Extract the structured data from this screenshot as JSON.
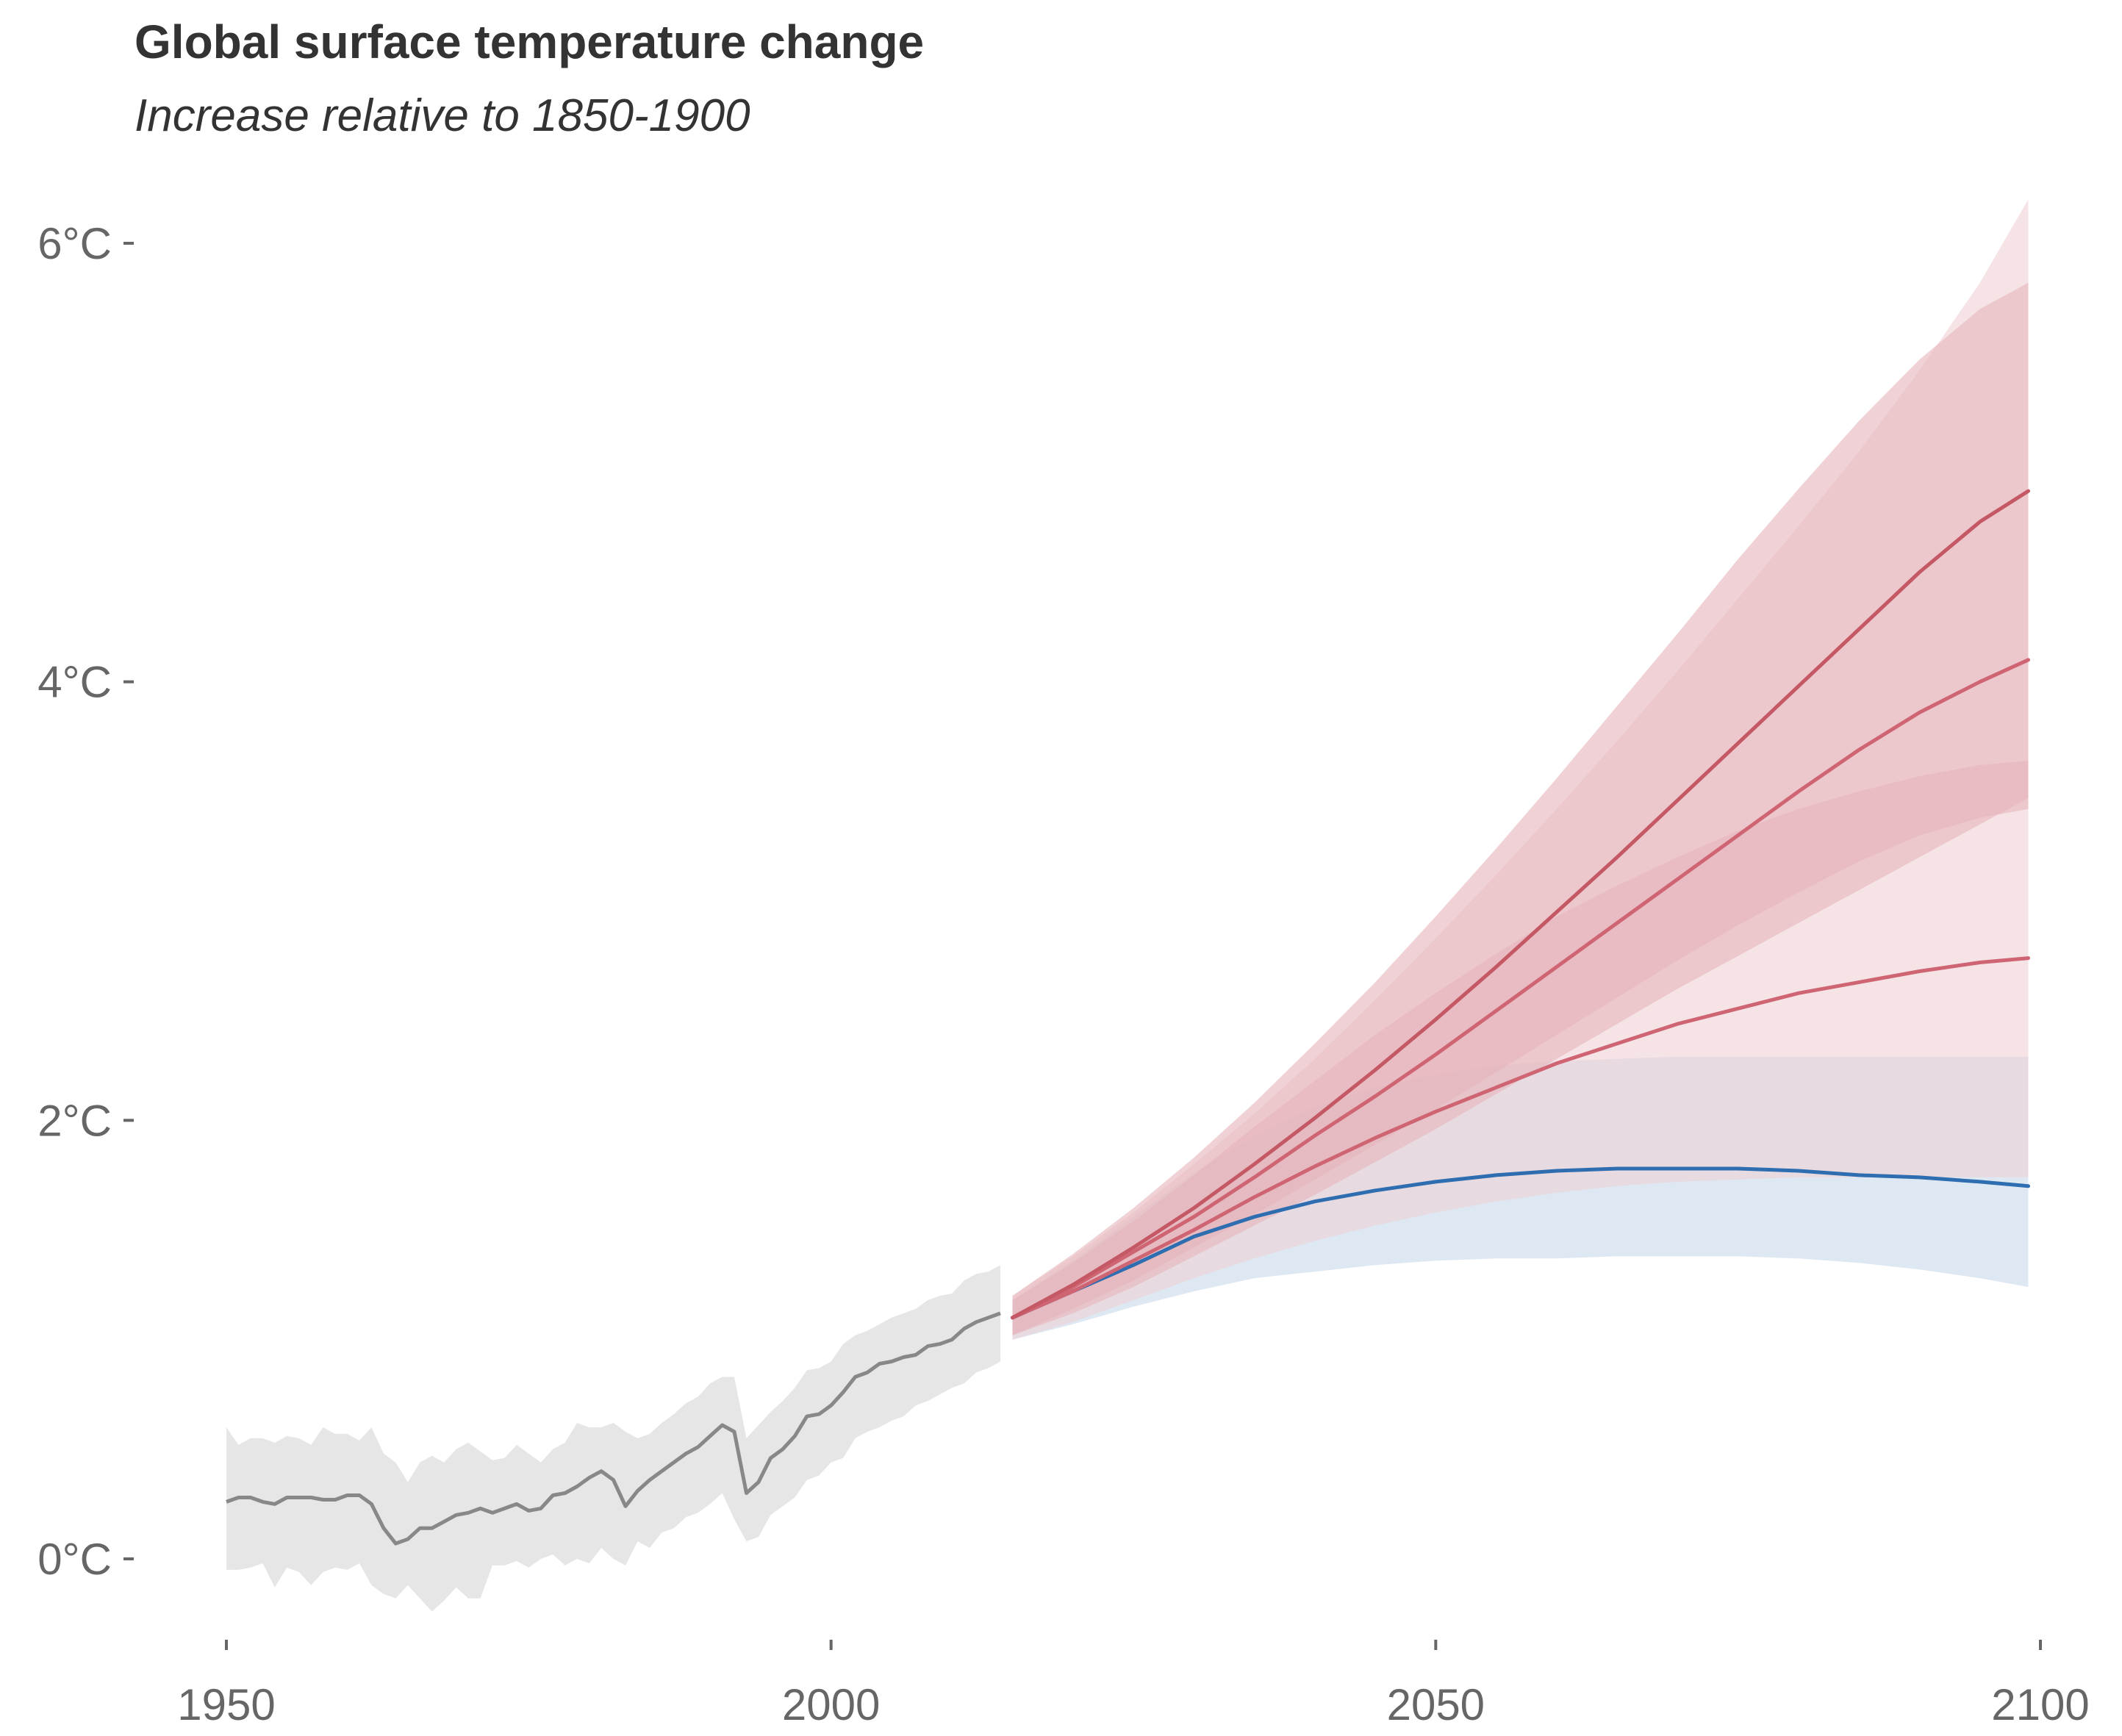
{
  "chart_data": {
    "type": "line",
    "title": "Global surface temperature change",
    "subtitle": "Increase relative to 1850-1900",
    "xlabel": "",
    "ylabel": "",
    "xlim": [
      1950,
      2100
    ],
    "ylim": [
      -0.3,
      6.2
    ],
    "x_ticks": [
      1950,
      2000,
      2050,
      2100
    ],
    "x_tick_labels": [
      "1950",
      "2000",
      "2050",
      "2100"
    ],
    "y_ticks": [
      0,
      2,
      4,
      6
    ],
    "y_tick_labels": [
      "0°C",
      "2°C",
      "4°C",
      "6°C"
    ],
    "grid": false,
    "legend": "none",
    "colors": {
      "historical_line": "#888888",
      "historical_band": "#e6e6e6",
      "low_line": "#2e6eb0",
      "low_band": "#c8d8ea",
      "high_line": "#c95464",
      "high_band": "#e6b4bb",
      "axis_text": "#666666"
    },
    "historical": {
      "x": [
        1950,
        1951,
        1952,
        1953,
        1954,
        1955,
        1956,
        1957,
        1958,
        1959,
        1960,
        1961,
        1962,
        1963,
        1964,
        1965,
        1966,
        1967,
        1968,
        1969,
        1970,
        1971,
        1972,
        1973,
        1974,
        1975,
        1976,
        1977,
        1978,
        1979,
        1980,
        1981,
        1982,
        1983,
        1984,
        1985,
        1986,
        1987,
        1988,
        1989,
        1990,
        1991,
        1992,
        1993,
        1994,
        1995,
        1996,
        1997,
        1998,
        1999,
        2000,
        2001,
        2002,
        2003,
        2004,
        2005,
        2006,
        2007,
        2008,
        2009,
        2010,
        2011,
        2012,
        2013,
        2014
      ],
      "y": [
        0.26,
        0.28,
        0.28,
        0.26,
        0.25,
        0.28,
        0.28,
        0.28,
        0.27,
        0.27,
        0.29,
        0.29,
        0.25,
        0.14,
        0.07,
        0.09,
        0.14,
        0.14,
        0.17,
        0.2,
        0.21,
        0.23,
        0.21,
        0.23,
        0.25,
        0.22,
        0.23,
        0.29,
        0.3,
        0.33,
        0.37,
        0.4,
        0.36,
        0.24,
        0.31,
        0.36,
        0.4,
        0.44,
        0.48,
        0.51,
        0.56,
        0.61,
        0.58,
        0.3,
        0.35,
        0.46,
        0.5,
        0.56,
        0.65,
        0.66,
        0.7,
        0.76,
        0.83,
        0.85,
        0.89,
        0.9,
        0.92,
        0.93,
        0.97,
        0.98,
        1.0,
        1.05,
        1.08,
        1.1,
        1.12
      ],
      "lower": [
        -0.05,
        -0.05,
        -0.04,
        -0.02,
        -0.13,
        -0.04,
        -0.06,
        -0.12,
        -0.06,
        -0.04,
        -0.05,
        -0.02,
        -0.12,
        -0.16,
        -0.18,
        -0.12,
        -0.18,
        -0.24,
        -0.19,
        -0.13,
        -0.18,
        -0.18,
        -0.03,
        -0.03,
        -0.01,
        -0.04,
        0.0,
        0.02,
        -0.03,
        0.0,
        -0.02,
        0.05,
        0.0,
        -0.03,
        0.08,
        0.05,
        0.12,
        0.14,
        0.19,
        0.21,
        0.25,
        0.3,
        0.18,
        0.08,
        0.1,
        0.2,
        0.24,
        0.28,
        0.36,
        0.38,
        0.44,
        0.46,
        0.55,
        0.58,
        0.6,
        0.63,
        0.65,
        0.7,
        0.72,
        0.75,
        0.78,
        0.8,
        0.85,
        0.87,
        0.9
      ],
      "upper": [
        0.6,
        0.52,
        0.55,
        0.55,
        0.53,
        0.56,
        0.55,
        0.52,
        0.6,
        0.57,
        0.57,
        0.54,
        0.6,
        0.48,
        0.44,
        0.35,
        0.44,
        0.47,
        0.44,
        0.5,
        0.53,
        0.49,
        0.45,
        0.46,
        0.52,
        0.48,
        0.44,
        0.5,
        0.53,
        0.62,
        0.6,
        0.6,
        0.62,
        0.58,
        0.55,
        0.57,
        0.62,
        0.66,
        0.71,
        0.74,
        0.8,
        0.83,
        0.83,
        0.55,
        0.61,
        0.67,
        0.72,
        0.78,
        0.86,
        0.87,
        0.9,
        0.98,
        1.02,
        1.04,
        1.07,
        1.1,
        1.12,
        1.14,
        1.18,
        1.2,
        1.21,
        1.27,
        1.3,
        1.31,
        1.34
      ]
    },
    "scenarios": [
      {
        "x": [
          2015,
          2020,
          2025,
          2030,
          2035,
          2040,
          2045,
          2050,
          2055,
          2060,
          2065,
          2070,
          2075,
          2080,
          2085,
          2090,
          2095,
          2099
        ],
        "y": [
          1.1,
          1.22,
          1.34,
          1.47,
          1.56,
          1.63,
          1.68,
          1.72,
          1.75,
          1.77,
          1.78,
          1.78,
          1.78,
          1.77,
          1.75,
          1.74,
          1.72,
          1.7
        ],
        "lower": [
          1.0,
          1.07,
          1.15,
          1.22,
          1.28,
          1.31,
          1.34,
          1.36,
          1.37,
          1.37,
          1.38,
          1.38,
          1.38,
          1.37,
          1.35,
          1.32,
          1.28,
          1.24
        ],
        "upper": [
          1.18,
          1.36,
          1.56,
          1.76,
          1.93,
          2.06,
          2.15,
          2.21,
          2.25,
          2.27,
          2.28,
          2.29,
          2.29,
          2.29,
          2.29,
          2.29,
          2.29,
          2.29
        ],
        "line_color": "#2e6eb0",
        "band_color": "#c8d8ea"
      },
      {
        "x": [
          2015,
          2020,
          2025,
          2030,
          2035,
          2040,
          2045,
          2050,
          2055,
          2060,
          2065,
          2070,
          2075,
          2080,
          2085,
          2090,
          2095,
          2099
        ],
        "y": [
          1.1,
          1.22,
          1.36,
          1.5,
          1.65,
          1.79,
          1.92,
          2.04,
          2.15,
          2.26,
          2.35,
          2.44,
          2.51,
          2.58,
          2.63,
          2.68,
          2.72,
          2.74
        ],
        "lower": [
          1.0,
          1.08,
          1.18,
          1.28,
          1.37,
          1.45,
          1.52,
          1.58,
          1.63,
          1.67,
          1.7,
          1.72,
          1.73,
          1.74,
          1.74,
          1.74,
          1.74,
          1.74
        ],
        "upper": [
          1.2,
          1.38,
          1.58,
          1.8,
          2.03,
          2.28,
          2.55,
          2.83,
          3.12,
          3.42,
          3.73,
          4.05,
          4.38,
          4.71,
          5.05,
          5.42,
          5.82,
          6.2
        ],
        "line_color": "#cf6473",
        "band_color": "#efd1d5"
      },
      {
        "x": [
          2015,
          2020,
          2025,
          2030,
          2035,
          2040,
          2045,
          2050,
          2055,
          2060,
          2065,
          2070,
          2075,
          2080,
          2085,
          2090,
          2095,
          2099
        ],
        "y": [
          1.1,
          1.24,
          1.4,
          1.56,
          1.74,
          1.93,
          2.11,
          2.3,
          2.5,
          2.7,
          2.9,
          3.1,
          3.3,
          3.5,
          3.69,
          3.86,
          4.0,
          4.1
        ],
        "lower": [
          1.02,
          1.12,
          1.24,
          1.38,
          1.52,
          1.66,
          1.81,
          1.96,
          2.12,
          2.28,
          2.44,
          2.6,
          2.75,
          2.9,
          3.05,
          3.2,
          3.35,
          3.47
        ],
        "upper": [
          1.18,
          1.35,
          1.54,
          1.75,
          1.97,
          2.18,
          2.39,
          2.58,
          2.76,
          2.93,
          3.07,
          3.2,
          3.32,
          3.42,
          3.5,
          3.57,
          3.62,
          3.64
        ],
        "line_color": "#cf6473",
        "band_color": "#e6b4bb"
      },
      {
        "x": [
          2015,
          2020,
          2025,
          2030,
          2035,
          2040,
          2045,
          2050,
          2055,
          2060,
          2065,
          2070,
          2075,
          2080,
          2085,
          2090,
          2095,
          2099
        ],
        "y": [
          1.1,
          1.25,
          1.42,
          1.6,
          1.8,
          2.01,
          2.23,
          2.46,
          2.7,
          2.95,
          3.2,
          3.46,
          3.72,
          3.98,
          4.24,
          4.5,
          4.73,
          4.87
        ],
        "lower": [
          1.02,
          1.14,
          1.27,
          1.42,
          1.57,
          1.73,
          1.89,
          2.05,
          2.22,
          2.39,
          2.56,
          2.73,
          2.89,
          3.04,
          3.18,
          3.3,
          3.38,
          3.42
        ],
        "upper": [
          1.2,
          1.39,
          1.6,
          1.83,
          2.08,
          2.35,
          2.63,
          2.93,
          3.24,
          3.56,
          3.89,
          4.22,
          4.56,
          4.88,
          5.19,
          5.47,
          5.7,
          5.82
        ],
        "line_color": "#c55865",
        "band_color": "#e6b4bb"
      }
    ]
  }
}
